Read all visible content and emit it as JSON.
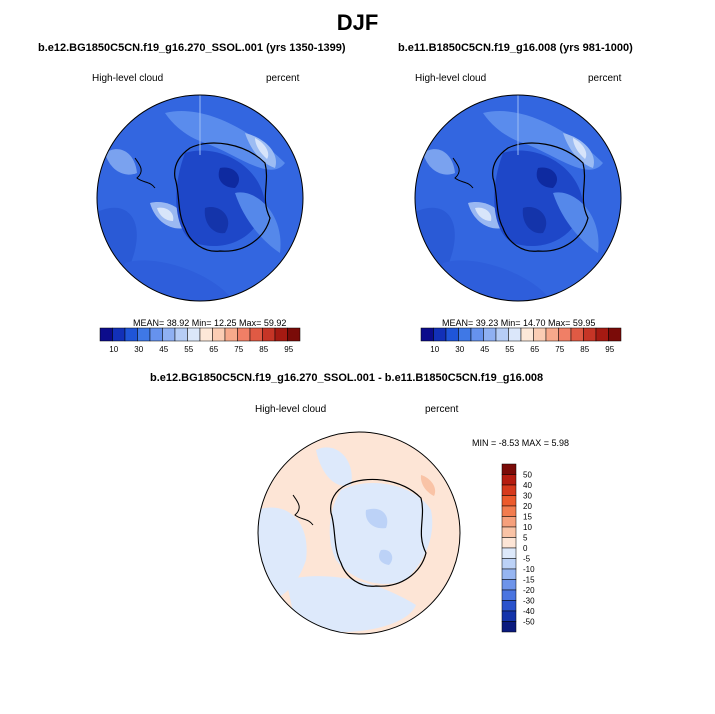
{
  "page": {
    "title": "DJF"
  },
  "panels": [
    {
      "case": "b.e12.BG1850C5CN.f19_g16.270_SSOL.001 (yrs 1350-1399)",
      "variable": "High-level cloud",
      "units": "percent",
      "stats_text": "MEAN=  38.92  Min=  12.25  Max=  59.92"
    },
    {
      "case": "b.e11.B1850C5CN.f19_g16.008 (yrs 981-1000)",
      "variable": "High-level cloud",
      "units": "percent",
      "stats_text": "MEAN=  39.23  Min=  14.70  Max=  59.95"
    }
  ],
  "difference": {
    "title": "b.e12.BG1850C5CN.f19_g16.270_SSOL.001 - b.e11.B1850C5CN.f19_g16.008",
    "variable": "High-level cloud",
    "units": "percent",
    "stats_text": "MIN =  -8.53 MAX =   5.98"
  },
  "chart_data": [
    {
      "type": "heatmap",
      "projection": "south polar stereographic",
      "title": "b.e12.BG1850C5CN.f19_g16.270_SSOL.001 (yrs 1350-1399)",
      "variable": "High-level cloud",
      "units": "percent",
      "mean": 38.92,
      "min": 12.25,
      "max": 59.92,
      "colorbar_levels": [
        10,
        20,
        30,
        40,
        45,
        50,
        55,
        60,
        65,
        70,
        75,
        80,
        85,
        90,
        95
      ],
      "colorbar_labels": [
        "10",
        "30",
        "45",
        "55",
        "65",
        "75",
        "85",
        "95"
      ],
      "colorbar_colors": [
        "#0c0c8c",
        "#1230b8",
        "#1f55d8",
        "#3f78e6",
        "#6692ee",
        "#8fb0f2",
        "#b6cdf6",
        "#dbe7fa",
        "#fde8d8",
        "#fbcdb4",
        "#f7a98b",
        "#f07f66",
        "#e05a44",
        "#c63526",
        "#a51a12",
        "#7a0b08"
      ],
      "legend_position": "bottom"
    },
    {
      "type": "heatmap",
      "projection": "south polar stereographic",
      "title": "b.e11.B1850C5CN.f19_g16.008 (yrs 981-1000)",
      "variable": "High-level cloud",
      "units": "percent",
      "mean": 39.23,
      "min": 14.7,
      "max": 59.95,
      "colorbar_levels": [
        10,
        20,
        30,
        40,
        45,
        50,
        55,
        60,
        65,
        70,
        75,
        80,
        85,
        90,
        95
      ],
      "colorbar_labels": [
        "10",
        "30",
        "45",
        "55",
        "65",
        "75",
        "85",
        "95"
      ],
      "colorbar_colors": [
        "#0c0c8c",
        "#1230b8",
        "#1f55d8",
        "#3f78e6",
        "#6692ee",
        "#8fb0f2",
        "#b6cdf6",
        "#dbe7fa",
        "#fde8d8",
        "#fbcdb4",
        "#f7a98b",
        "#f07f66",
        "#e05a44",
        "#c63526",
        "#a51a12",
        "#7a0b08"
      ],
      "legend_position": "bottom"
    },
    {
      "type": "heatmap",
      "projection": "south polar stereographic",
      "title": "b.e12.BG1850C5CN.f19_g16.270_SSOL.001 - b.e11.B1850C5CN.f19_g16.008",
      "variable": "High-level cloud",
      "units": "percent",
      "min": -8.53,
      "max": 5.98,
      "colorbar_levels": [
        50,
        40,
        30,
        20,
        15,
        10,
        5,
        0,
        -5,
        -10,
        -15,
        -20,
        -30,
        -40,
        -50
      ],
      "colorbar_labels": [
        "50",
        "40",
        "30",
        "20",
        "15",
        "10",
        "5",
        "0",
        "-5",
        "-10",
        "-15",
        "-20",
        "-30",
        "-40",
        "-50"
      ],
      "colorbar_colors": [
        "#7a0b08",
        "#b51c10",
        "#d6391c",
        "#ec5a2c",
        "#f27c4f",
        "#f6a07c",
        "#f9c3a6",
        "#fde5d6",
        "#dde9fb",
        "#bcd2f7",
        "#96b5f1",
        "#6e94ea",
        "#4a74e0",
        "#2a52cc",
        "#1434aa",
        "#0a1a7e"
      ],
      "legend_position": "right"
    }
  ]
}
